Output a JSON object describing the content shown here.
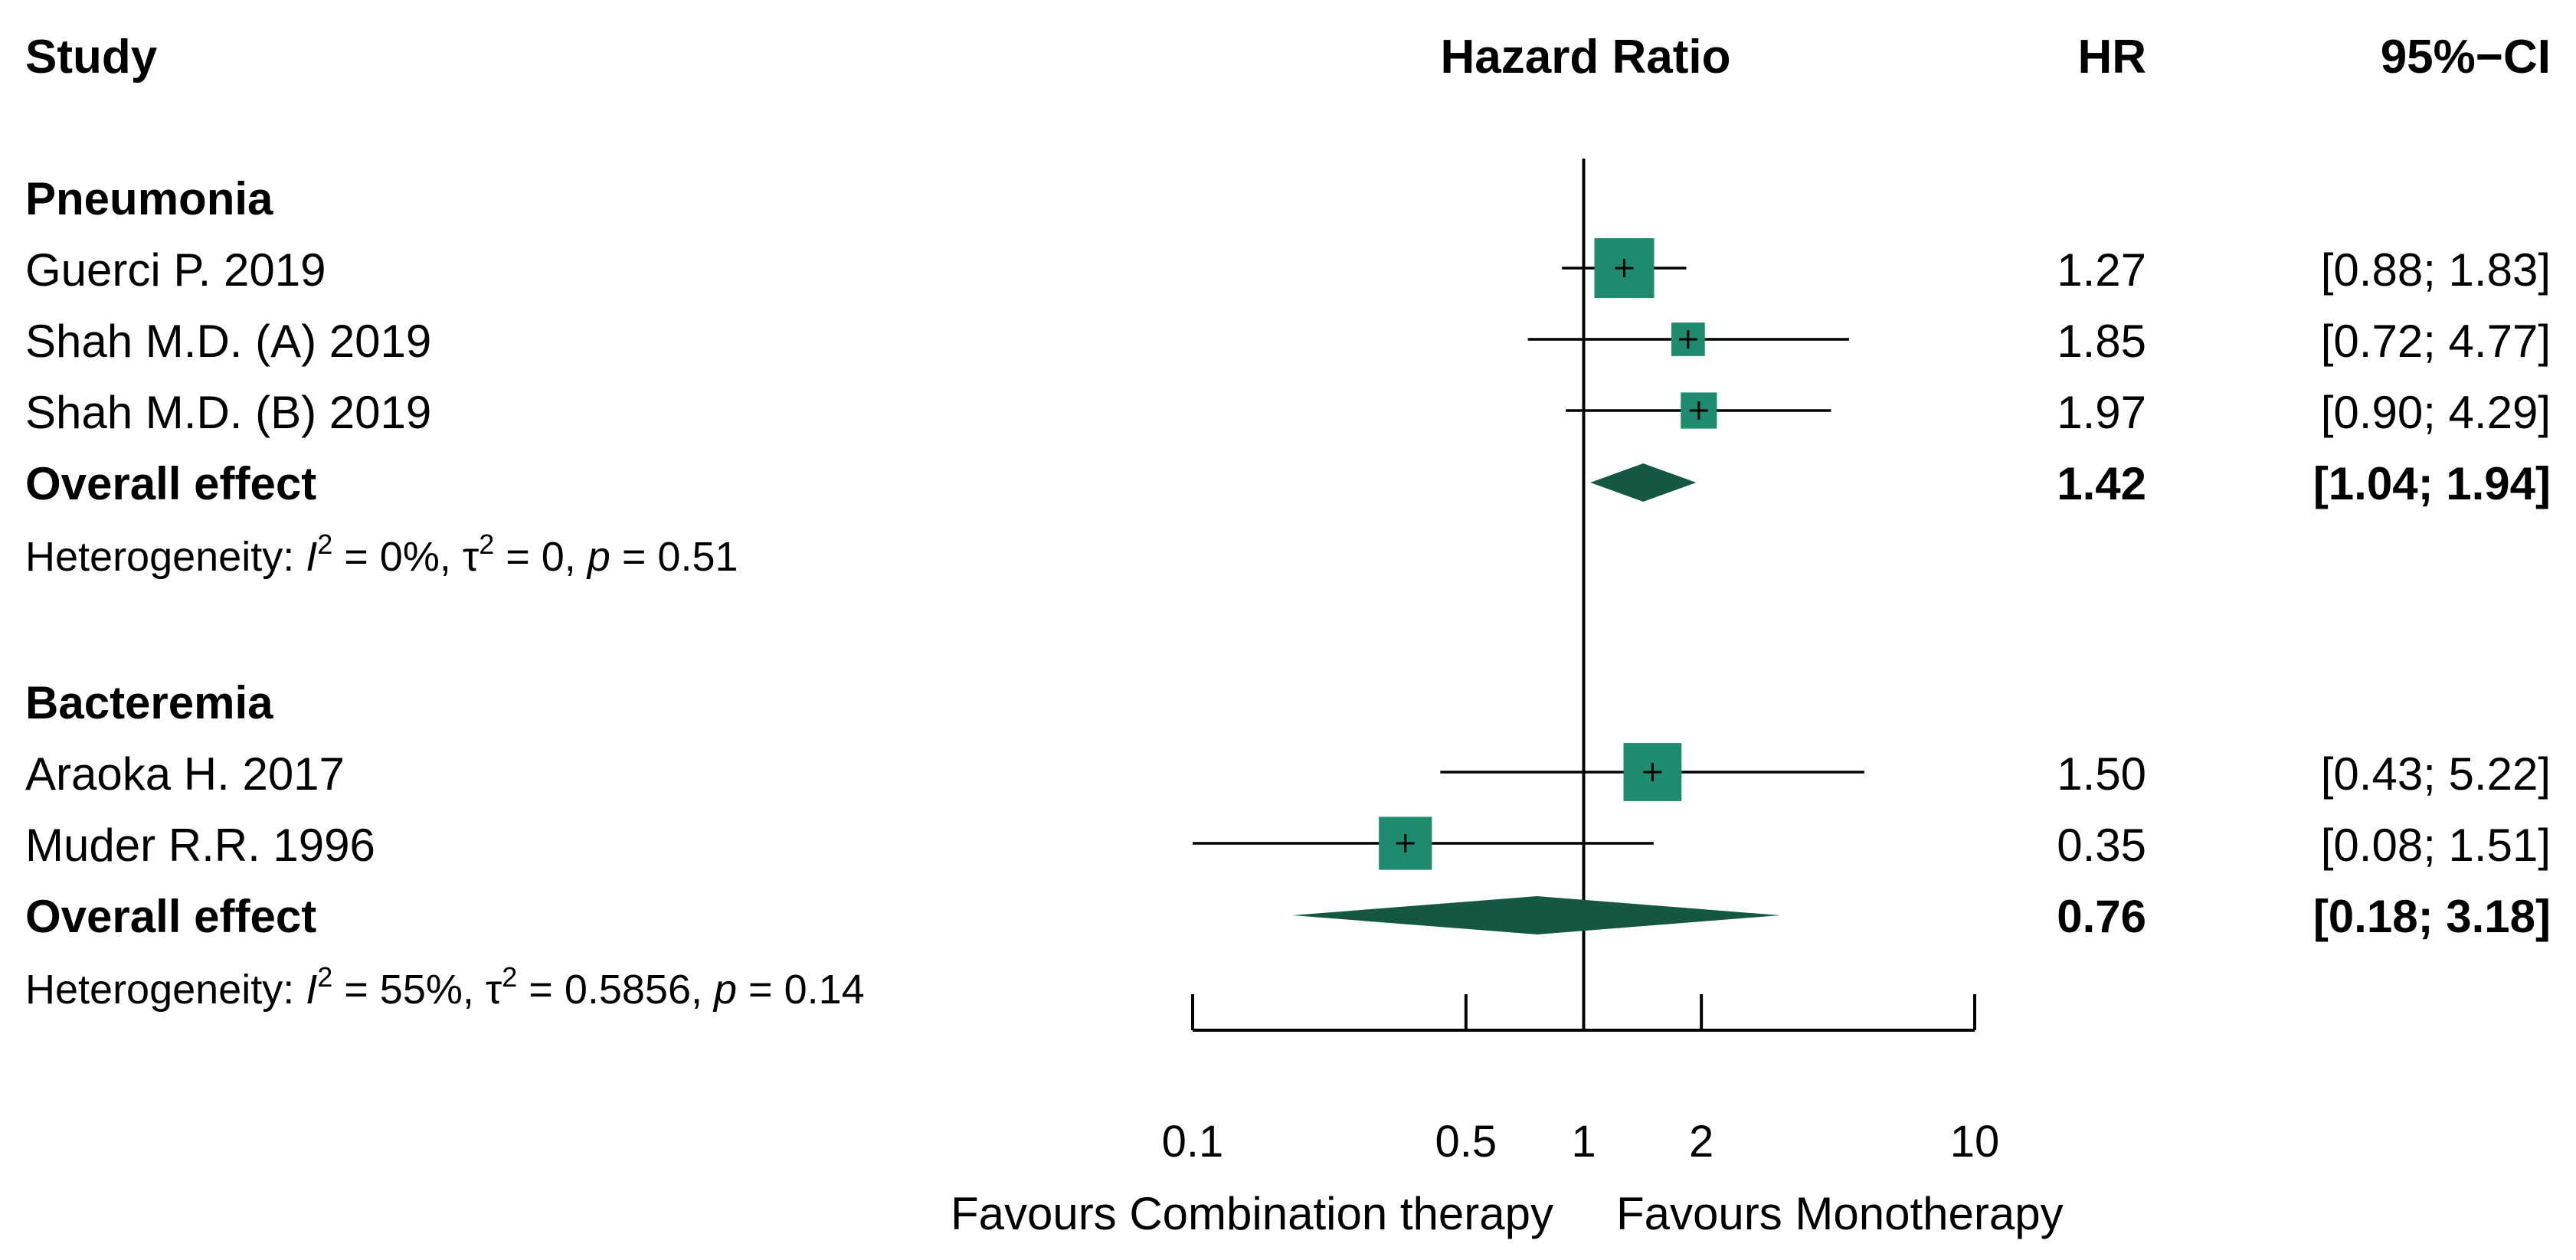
{
  "header": {
    "study": "Study",
    "hazard_ratio": "Hazard Ratio",
    "hr": "HR",
    "ci": "95%−CI"
  },
  "chart_data": {
    "type": "forest",
    "measure": "Hazard Ratio",
    "scale": "log",
    "xlim": [
      0.1,
      10
    ],
    "null_value": 1,
    "ticks": [
      0.1,
      0.5,
      1,
      2,
      10
    ],
    "tick_labels": [
      "0.1",
      "0.5",
      "1",
      "2",
      "10"
    ],
    "favours_left": "Favours Combination therapy",
    "favours_right": "Favours Monotherapy",
    "colors": {
      "square": "#1e8a6e",
      "diamond": "#14583f",
      "line": "#000000"
    },
    "groups": [
      {
        "name": "Pneumonia",
        "studies": [
          {
            "label": "Guerci P. 2019",
            "hr": 1.27,
            "lower": 0.88,
            "upper": 1.83,
            "hr_text": "1.27",
            "ci_text": "[0.88; 1.83]",
            "weight": 1.0
          },
          {
            "label": "Shah M.D. (A) 2019",
            "hr": 1.85,
            "lower": 0.72,
            "upper": 4.77,
            "hr_text": "1.85",
            "ci_text": "[0.72; 4.77]",
            "weight": 0.22
          },
          {
            "label": "Shah M.D. (B) 2019",
            "hr": 1.97,
            "lower": 0.9,
            "upper": 4.29,
            "hr_text": "1.97",
            "ci_text": "[0.90; 4.29]",
            "weight": 0.3
          }
        ],
        "overall": {
          "label": "Overall effect",
          "hr": 1.42,
          "lower": 1.04,
          "upper": 1.94,
          "hr_text": "1.42",
          "ci_text": "[1.04; 1.94]"
        },
        "heterogeneity": {
          "prefix": "Heterogeneity: ",
          "i2_label": "I",
          "i2_sup": "2",
          "i2_value": " = 0%, ",
          "tau_label": "τ",
          "tau_sup": "2",
          "tau_value": " = 0, ",
          "p_label": "p",
          "p_value": " = 0.51"
        }
      },
      {
        "name": "Bacteremia",
        "studies": [
          {
            "label": "Araoka H. 2017",
            "hr": 1.5,
            "lower": 0.43,
            "upper": 5.22,
            "hr_text": "1.50",
            "ci_text": "[0.43; 5.22]",
            "weight": 0.95
          },
          {
            "label": "Muder R.R. 1996",
            "hr": 0.35,
            "lower": 0.08,
            "upper": 1.51,
            "hr_text": "0.35",
            "ci_text": "[0.08; 1.51]",
            "weight": 0.8
          }
        ],
        "overall": {
          "label": "Overall effect",
          "hr": 0.76,
          "lower": 0.18,
          "upper": 3.18,
          "hr_text": "0.76",
          "ci_text": "[0.18; 3.18]"
        },
        "heterogeneity": {
          "prefix": "Heterogeneity: ",
          "i2_label": "I",
          "i2_sup": "2",
          "i2_value": " = 55%, ",
          "tau_label": "τ",
          "tau_sup": "2",
          "tau_value": " = 0.5856, ",
          "p_label": "p",
          "p_value": " = 0.14"
        }
      }
    ]
  }
}
